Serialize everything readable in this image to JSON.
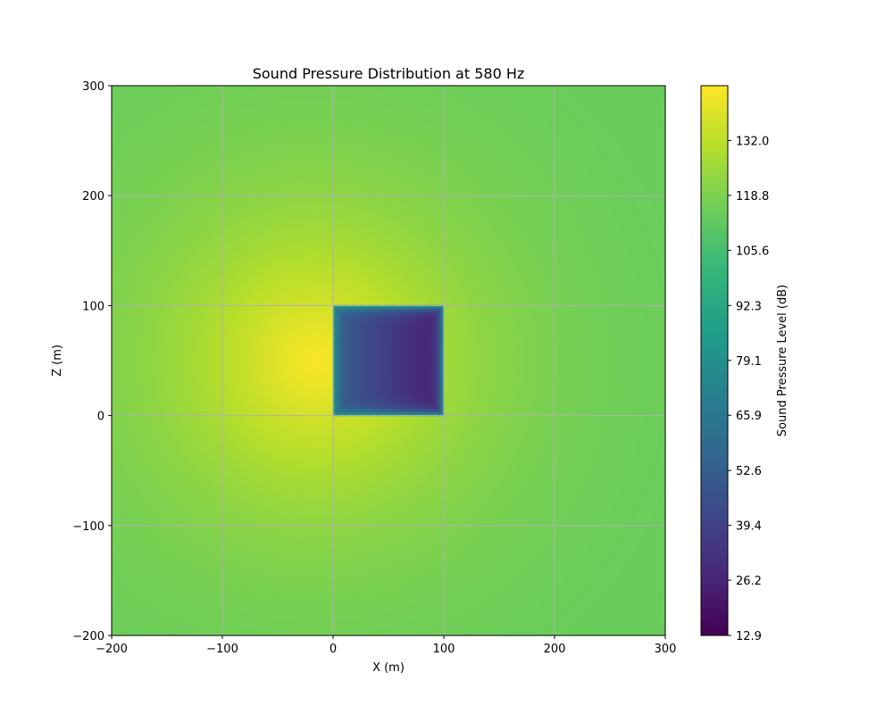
{
  "chart_data": {
    "type": "heatmap",
    "title": "Sound Pressure Distribution at 580 Hz",
    "xlabel": "X (m)",
    "ylabel": "Z (m)",
    "xlim": [
      -200,
      300
    ],
    "ylim": [
      -200,
      300
    ],
    "x_ticks": [
      -200,
      -100,
      0,
      100,
      200,
      300
    ],
    "y_ticks": [
      -200,
      -100,
      0,
      100,
      200,
      300
    ],
    "x_tick_labels": [
      "−200",
      "−100",
      "0",
      "100",
      "200",
      "300"
    ],
    "y_tick_labels": [
      "−200",
      "−100",
      "0",
      "100",
      "200",
      "300"
    ],
    "grid": true,
    "colormap": "viridis",
    "colorbar": {
      "label": "Sound Pressure Level (dB)",
      "range": [
        12.9,
        145.2
      ],
      "tick_values": [
        12.9,
        26.2,
        39.4,
        52.6,
        65.9,
        79.1,
        92.3,
        105.6,
        118.8,
        132.0
      ],
      "tick_labels": [
        "12.9",
        "26.2",
        "39.4",
        "52.6",
        "65.9",
        "79.1",
        "92.3",
        "105.6",
        "118.8",
        "132.0"
      ]
    },
    "field": {
      "source_position": [
        -15,
        50
      ],
      "peak_level_db": 144,
      "far_level_db": 117
    },
    "shadow_region": {
      "x_range": [
        0,
        100
      ],
      "z_range": [
        0,
        100
      ],
      "edge_level_db": 90,
      "interior_level_db": 22
    }
  },
  "colors": {
    "viridis": [
      "#440154",
      "#482878",
      "#3e4989",
      "#31688e",
      "#26828e",
      "#1f9e89",
      "#35b779",
      "#6ece58",
      "#b5de2b",
      "#fde725"
    ],
    "grid": "#b0b0b0",
    "axis": "#000000"
  }
}
